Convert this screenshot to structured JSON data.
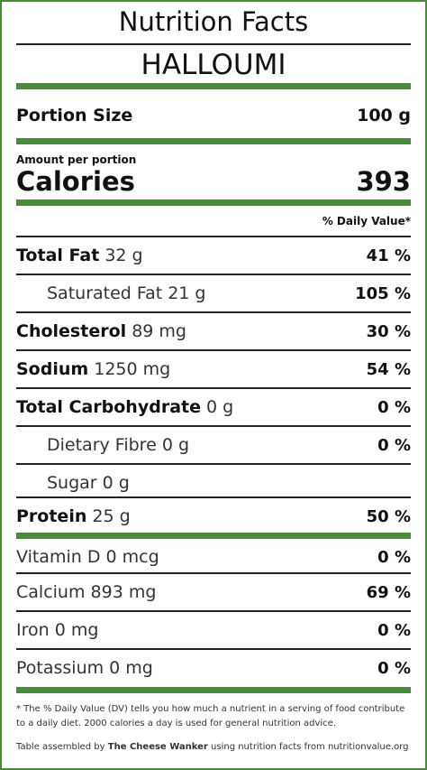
{
  "header": {
    "title": "Nutrition Facts",
    "product": "HALLOUMI"
  },
  "portion": {
    "label": "Portion Size",
    "value": "100 g"
  },
  "calories": {
    "amount_label": "Amount per portion",
    "label": "Calories",
    "value": "393"
  },
  "daily_value_header": "% Daily Value*",
  "nutrients": [
    {
      "name": "Total Fat",
      "amount": "32 g",
      "percent": "41 %"
    },
    {
      "name": "Saturated Fat",
      "amount": "21 g",
      "percent": "105 %"
    },
    {
      "name": "Cholesterol",
      "amount": "89 mg",
      "percent": "30 %"
    },
    {
      "name": "Sodium",
      "amount": "1250 mg",
      "percent": "54 %"
    },
    {
      "name": "Total Carbohydrate",
      "amount": "0 g",
      "percent": "0 %"
    },
    {
      "name": "Dietary Fibre",
      "amount": "0 g",
      "percent": "0 %"
    },
    {
      "name": "Sugar",
      "amount": "0 g",
      "percent": ""
    },
    {
      "name": "Protein",
      "amount": "25 g",
      "percent": "50 %"
    }
  ],
  "vitamins": [
    {
      "name": "Vitamin D",
      "amount": "0 mcg",
      "percent": "0 %"
    },
    {
      "name": "Calcium",
      "amount": "893 mg",
      "percent": "69 %"
    },
    {
      "name": "Iron",
      "amount": "0 mg",
      "percent": "0 %"
    },
    {
      "name": "Potassium",
      "amount": "0 mg",
      "percent": "0 %"
    }
  ],
  "footnote": "* The % Daily Value (DV) tells you how much a nutrient in a serving of food contribute to a daily diet. 2000 calories a day is used for general nutrition advice.",
  "credit": {
    "prefix": "Table assembled by",
    "author": "The Cheese Wanker",
    "suffix": "using nutrition facts from nutritionvalue.org"
  },
  "colors": {
    "accent": "#4b8a3d",
    "text": "#111111"
  }
}
